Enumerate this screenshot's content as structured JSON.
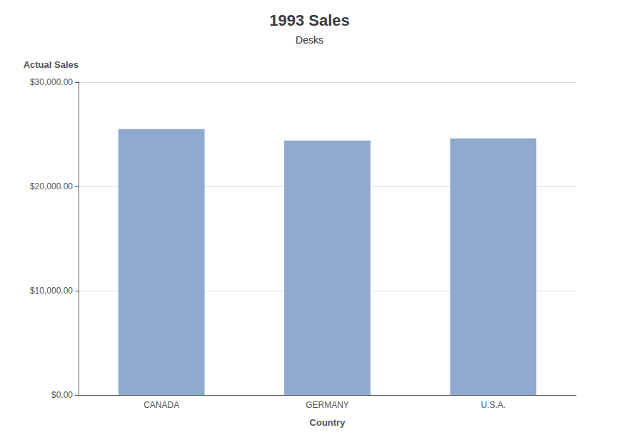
{
  "chart_data": {
    "type": "bar",
    "title": "1993 Sales",
    "subtitle": "Desks",
    "xlabel": "Country",
    "ylabel": "Actual Sales",
    "categories": [
      "CANADA",
      "GERMANY",
      "U.S.A."
    ],
    "values": [
      25500,
      24400,
      24600
    ],
    "color": "#8faacc",
    "ylim": [
      0,
      30000
    ],
    "yticks": [
      {
        "value": 0,
        "label": "$0.00"
      },
      {
        "value": 10000,
        "label": "$10,000.00"
      },
      {
        "value": 20000,
        "label": "$20,000.00"
      },
      {
        "value": 30000,
        "label": "$30,000.00"
      }
    ],
    "grid": true
  }
}
